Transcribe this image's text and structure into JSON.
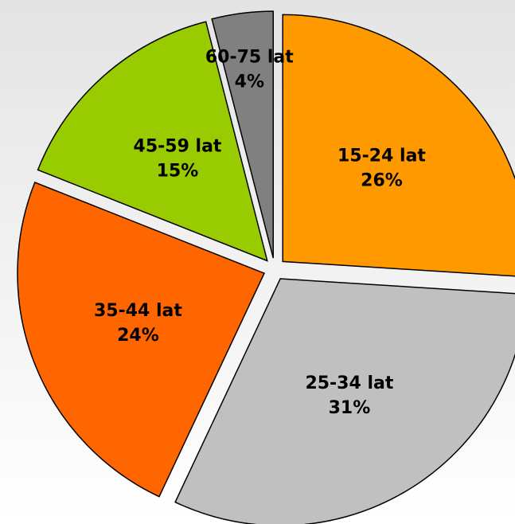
{
  "chart_data": {
    "type": "pie",
    "categories": [
      "15-24 lat",
      "25-34 lat",
      "35-44 lat",
      "45-59 lat",
      "60-75 lat"
    ],
    "values": [
      26,
      31,
      24,
      15,
      4
    ],
    "value_labels": [
      "26%",
      "31%",
      "24%",
      "15%",
      "4%"
    ],
    "colors": [
      "#ff9900",
      "#c0c0c0",
      "#ff6600",
      "#99cc00",
      "#808080"
    ]
  }
}
